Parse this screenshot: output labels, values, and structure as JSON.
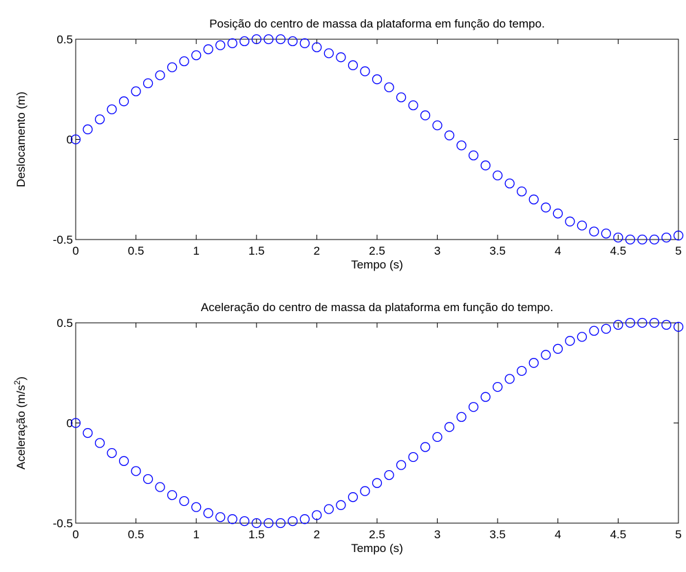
{
  "chart_data": [
    {
      "type": "scatter",
      "title": "Posição do centro de massa da plataforma em função do tempo.",
      "xlabel": "Tempo (s)",
      "ylabel": "Deslocamento (m)",
      "xlim": [
        0,
        5
      ],
      "ylim": [
        -0.5,
        0.5
      ],
      "xticks": [
        "0",
        "0.5",
        "1",
        "1.5",
        "2",
        "2.5",
        "3",
        "3.5",
        "4",
        "4.5",
        "5"
      ],
      "yticks": [
        "-0.5",
        "0",
        "0.5"
      ],
      "grid": false,
      "marker": "circle",
      "color": "#0000ff",
      "series": [
        {
          "x": [
            0,
            0.1,
            0.2,
            0.3,
            0.4,
            0.5,
            0.6,
            0.7,
            0.8,
            0.9,
            1.0,
            1.1,
            1.2,
            1.3,
            1.4,
            1.5,
            1.6,
            1.7,
            1.8,
            1.9,
            2.0,
            2.1,
            2.2,
            2.3,
            2.4,
            2.5,
            2.6,
            2.7,
            2.8,
            2.9,
            3.0,
            3.1,
            3.2,
            3.3,
            3.4,
            3.5,
            3.6,
            3.7,
            3.8,
            3.9,
            4.0,
            4.1,
            4.2,
            4.3,
            4.4,
            4.5,
            4.6,
            4.7,
            4.8,
            4.9,
            5.0
          ],
          "values": [
            0,
            0.05,
            0.1,
            0.15,
            0.19,
            0.24,
            0.28,
            0.32,
            0.36,
            0.39,
            0.42,
            0.45,
            0.47,
            0.48,
            0.49,
            0.5,
            0.5,
            0.5,
            0.49,
            0.48,
            0.46,
            0.43,
            0.41,
            0.37,
            0.34,
            0.3,
            0.26,
            0.21,
            0.17,
            0.12,
            0.07,
            0.02,
            -0.03,
            -0.08,
            -0.13,
            -0.18,
            -0.22,
            -0.26,
            -0.3,
            -0.34,
            -0.37,
            -0.41,
            -0.43,
            -0.46,
            -0.47,
            -0.49,
            -0.5,
            -0.5,
            -0.5,
            -0.49,
            -0.48
          ]
        }
      ]
    },
    {
      "type": "scatter",
      "title": "Aceleração do centro de massa da plataforma em função do tempo.",
      "xlabel": "Tempo (s)",
      "ylabel": "Aceleração (m/s",
      "ylabel_sup": "2",
      "ylabel_suffix": ")",
      "xlim": [
        0,
        5
      ],
      "ylim": [
        -0.5,
        0.5
      ],
      "xticks": [
        "0",
        "0.5",
        "1",
        "1.5",
        "2",
        "2.5",
        "3",
        "3.5",
        "4",
        "4.5",
        "5"
      ],
      "yticks": [
        "-0.5",
        "0",
        "0.5"
      ],
      "grid": false,
      "marker": "circle",
      "color": "#0000ff",
      "series": [
        {
          "x": [
            0,
            0.1,
            0.2,
            0.3,
            0.4,
            0.5,
            0.6,
            0.7,
            0.8,
            0.9,
            1.0,
            1.1,
            1.2,
            1.3,
            1.4,
            1.5,
            1.6,
            1.7,
            1.8,
            1.9,
            2.0,
            2.1,
            2.2,
            2.3,
            2.4,
            2.5,
            2.6,
            2.7,
            2.8,
            2.9,
            3.0,
            3.1,
            3.2,
            3.3,
            3.4,
            3.5,
            3.6,
            3.7,
            3.8,
            3.9,
            4.0,
            4.1,
            4.2,
            4.3,
            4.4,
            4.5,
            4.6,
            4.7,
            4.8,
            4.9,
            5.0
          ],
          "values": [
            0,
            -0.05,
            -0.1,
            -0.15,
            -0.19,
            -0.24,
            -0.28,
            -0.32,
            -0.36,
            -0.39,
            -0.42,
            -0.45,
            -0.47,
            -0.48,
            -0.49,
            -0.5,
            -0.5,
            -0.5,
            -0.49,
            -0.48,
            -0.46,
            -0.43,
            -0.41,
            -0.37,
            -0.34,
            -0.3,
            -0.26,
            -0.21,
            -0.17,
            -0.12,
            -0.07,
            -0.02,
            0.03,
            0.08,
            0.13,
            0.18,
            0.22,
            0.26,
            0.3,
            0.34,
            0.37,
            0.41,
            0.43,
            0.46,
            0.47,
            0.49,
            0.5,
            0.5,
            0.5,
            0.49,
            0.48
          ]
        }
      ]
    }
  ]
}
